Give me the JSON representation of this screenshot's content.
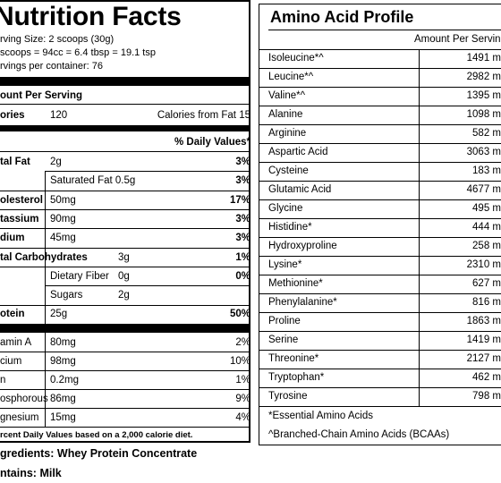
{
  "nutrition": {
    "title": "Nutrition Facts",
    "serving_size": "rving Size: 2 scoops (30g)",
    "scoop_volume": "scoops = 94cc = 6.4 tbsp = 19.1 tsp",
    "servings_per_container": "rvings per container: 76",
    "amount_per_serving": "ount Per Serving",
    "calories_label": "ories",
    "calories_value": "120",
    "calories_from_fat": "Calories from Fat 15",
    "daily_values_header": "% Daily Values*",
    "rows": [
      {
        "label": "tal Fat",
        "amount": "2g",
        "dv": "3%"
      },
      {
        "label": "Saturated Fat 0.5g",
        "amount": "",
        "dv": "3%"
      },
      {
        "label": "olesterol",
        "amount": "50mg",
        "dv": "17%"
      },
      {
        "label": "tassium",
        "amount": "90mg",
        "dv": "3%"
      },
      {
        "label": "dium",
        "amount": "45mg",
        "dv": "3%"
      },
      {
        "label": "tal Carbohydrates",
        "amount": "3g",
        "dv": "1%"
      },
      {
        "label": "Dietary Fiber",
        "amount": "0g",
        "dv": "0%"
      },
      {
        "label": "Sugars",
        "amount": "2g",
        "dv": ""
      },
      {
        "label": "otein",
        "amount": "25g",
        "dv": "50%"
      }
    ],
    "vitamins": [
      {
        "label": "amin A",
        "amount": "80mg",
        "dv": "2%"
      },
      {
        "label": "cium",
        "amount": "98mg",
        "dv": "10%"
      },
      {
        "label": "n",
        "amount": "0.2mg",
        "dv": "1%"
      },
      {
        "label": "osphorous",
        "amount": "86mg",
        "dv": "9%"
      },
      {
        "label": "gnesium",
        "amount": "15mg",
        "dv": "4%"
      }
    ],
    "footnote": "rcent Daily Values based on a 2,000 calorie diet."
  },
  "ingredients": "gredients: Whey Protein Concentrate",
  "contains": "ntains: Milk",
  "amino": {
    "title": "Amino Acid Profile",
    "column_header": "Amount Per Servin",
    "rows": [
      {
        "name": "Isoleucine*^",
        "value": "1491 m"
      },
      {
        "name": "Leucine*^",
        "value": "2982 m"
      },
      {
        "name": "Valine*^",
        "value": "1395 m"
      },
      {
        "name": "Alanine",
        "value": "1098 m"
      },
      {
        "name": "Arginine",
        "value": "582 m"
      },
      {
        "name": "Aspartic Acid",
        "value": "3063 m"
      },
      {
        "name": "Cysteine",
        "value": "183 m"
      },
      {
        "name": "Glutamic Acid",
        "value": "4677 m"
      },
      {
        "name": "Glycine",
        "value": "495 m"
      },
      {
        "name": "Histidine*",
        "value": "444 m"
      },
      {
        "name": "Hydroxyproline",
        "value": "258 m"
      },
      {
        "name": "Lysine*",
        "value": "2310 m"
      },
      {
        "name": "Methionine*",
        "value": "627 m"
      },
      {
        "name": "Phenylalanine*",
        "value": "816 m"
      },
      {
        "name": "Proline",
        "value": "1863 m"
      },
      {
        "name": "Serine",
        "value": "1419 m"
      },
      {
        "name": "Threonine*",
        "value": "2127 m"
      },
      {
        "name": "Tryptophan*",
        "value": "462 m"
      },
      {
        "name": "Tyrosine",
        "value": "798 m"
      }
    ],
    "footnote_essential": "*Essential Amino Acids",
    "footnote_bcaa": "^Branched-Chain Amino Acids (BCAAs)"
  }
}
